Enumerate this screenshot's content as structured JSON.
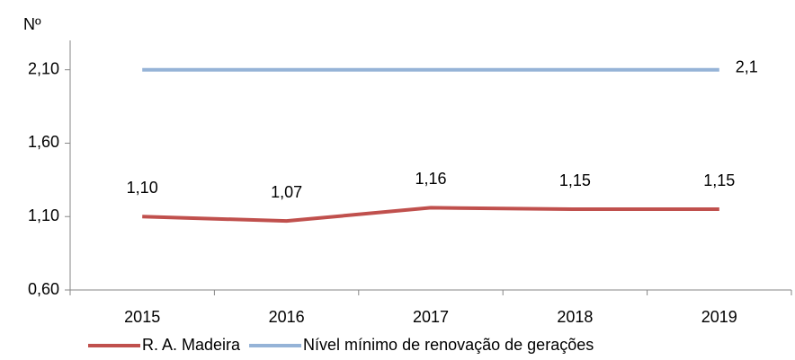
{
  "chart_data": {
    "type": "line",
    "y_label": "Nº",
    "categories": [
      "2015",
      "2016",
      "2017",
      "2018",
      "2019"
    ],
    "series": [
      {
        "name": "R. A. Madeira",
        "color": "#c0504d",
        "values": [
          1.1,
          1.07,
          1.16,
          1.15,
          1.15
        ],
        "value_labels": [
          "1,10",
          "1,07",
          "1,16",
          "1,15",
          "1,15"
        ]
      },
      {
        "name": "Nível mínimo de renovação de gerações",
        "color": "#95b3d7",
        "values": [
          2.1,
          2.1,
          2.1,
          2.1,
          2.1
        ],
        "value_labels": [
          null,
          null,
          null,
          null,
          "2,1"
        ]
      }
    ],
    "ylim": [
      0.6,
      2.3
    ],
    "yticks": [
      {
        "value": 0.6,
        "label": "0,60"
      },
      {
        "value": 1.1,
        "label": "1,10"
      },
      {
        "value": 1.6,
        "label": "1,60"
      },
      {
        "value": 2.1,
        "label": "2,10"
      }
    ],
    "grid": false,
    "legend": "bottom"
  }
}
